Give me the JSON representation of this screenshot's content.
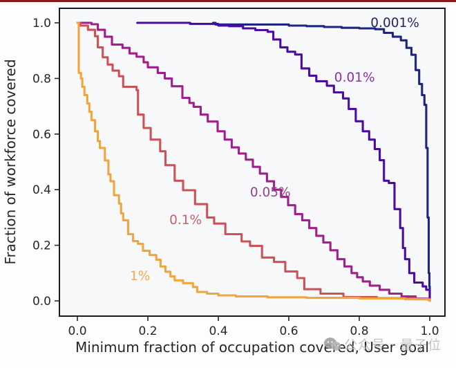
{
  "watermark": {
    "icon": "wechat-icon",
    "text": "公众号 · 量子位"
  },
  "chart_data": {
    "type": "line",
    "title": "",
    "xlabel": "Minimum fraction of occupation covered, User goal",
    "ylabel": "Fraction of workforce covered",
    "xlim": [
      0.0,
      1.0
    ],
    "ylim": [
      0.0,
      1.0
    ],
    "grid": false,
    "legend_position": "inline-labels",
    "xticks": [
      "0.0",
      "0.2",
      "0.4",
      "0.6",
      "0.8",
      "1.0"
    ],
    "yticks": [
      "0.0",
      "0.2",
      "0.4",
      "0.6",
      "0.8",
      "1.0"
    ],
    "background_color": "#f7f8fa",
    "axis_color": "#1b1b1b",
    "series": [
      {
        "name": "0.001%",
        "color": "#1e2583",
        "label_color": "#20265f",
        "label_pos": [
          0.832,
          0.985
        ],
        "points": [
          [
            0.385,
            1.0
          ],
          [
            0.392,
            0.994
          ],
          [
            0.57,
            0.994
          ],
          [
            0.6,
            0.99
          ],
          [
            0.65,
            0.988
          ],
          [
            0.7,
            0.985
          ],
          [
            0.75,
            0.982
          ],
          [
            0.8,
            0.98
          ],
          [
            0.845,
            0.977
          ],
          [
            0.87,
            0.964
          ],
          [
            0.895,
            0.95
          ],
          [
            0.918,
            0.937
          ],
          [
            0.934,
            0.91
          ],
          [
            0.948,
            0.885
          ],
          [
            0.96,
            0.83
          ],
          [
            0.97,
            0.78
          ],
          [
            0.978,
            0.74
          ],
          [
            0.985,
            0.705
          ],
          [
            0.99,
            0.55
          ],
          [
            0.994,
            0.3
          ],
          [
            0.997,
            0.1
          ],
          [
            0.999,
            0.052
          ],
          [
            1.0,
            0.0
          ]
        ]
      },
      {
        "name": "0.01%",
        "color": "#4a0da0",
        "label_color": "#8c2fa8",
        "label_pos": [
          0.729,
          0.788
        ],
        "points": [
          [
            0.17,
            1.0
          ],
          [
            0.3,
            1.0
          ],
          [
            0.32,
            0.996
          ],
          [
            0.382,
            0.996
          ],
          [
            0.4,
            0.99
          ],
          [
            0.43,
            0.988
          ],
          [
            0.47,
            0.98
          ],
          [
            0.505,
            0.974
          ],
          [
            0.54,
            0.968
          ],
          [
            0.556,
            0.94
          ],
          [
            0.576,
            0.912
          ],
          [
            0.596,
            0.896
          ],
          [
            0.618,
            0.886
          ],
          [
            0.636,
            0.836
          ],
          [
            0.658,
            0.81
          ],
          [
            0.678,
            0.79
          ],
          [
            0.708,
            0.774
          ],
          [
            0.728,
            0.75
          ],
          [
            0.754,
            0.728
          ],
          [
            0.77,
            0.69
          ],
          [
            0.79,
            0.646
          ],
          [
            0.81,
            0.61
          ],
          [
            0.828,
            0.58
          ],
          [
            0.844,
            0.546
          ],
          [
            0.858,
            0.506
          ],
          [
            0.87,
            0.432
          ],
          [
            0.884,
            0.424
          ],
          [
            0.9,
            0.33
          ],
          [
            0.916,
            0.262
          ],
          [
            0.924,
            0.19
          ],
          [
            0.93,
            0.15
          ],
          [
            0.942,
            0.1
          ],
          [
            0.956,
            0.066
          ],
          [
            0.98,
            0.052
          ],
          [
            0.99,
            0.04
          ],
          [
            1.0,
            0.0
          ]
        ]
      },
      {
        "name": "0.05%",
        "color": "#a11f8a",
        "label_color": "#98408d",
        "label_pos": [
          0.49,
          0.376
        ],
        "points": [
          [
            0.0,
            1.0
          ],
          [
            0.04,
            0.995
          ],
          [
            0.058,
            0.975
          ],
          [
            0.078,
            0.95
          ],
          [
            0.098,
            0.922
          ],
          [
            0.128,
            0.91
          ],
          [
            0.148,
            0.89
          ],
          [
            0.168,
            0.878
          ],
          [
            0.188,
            0.858
          ],
          [
            0.2,
            0.84
          ],
          [
            0.228,
            0.82
          ],
          [
            0.248,
            0.8
          ],
          [
            0.268,
            0.772
          ],
          [
            0.298,
            0.73
          ],
          [
            0.318,
            0.712
          ],
          [
            0.33,
            0.698
          ],
          [
            0.35,
            0.67
          ],
          [
            0.37,
            0.645
          ],
          [
            0.398,
            0.61
          ],
          [
            0.418,
            0.58
          ],
          [
            0.438,
            0.552
          ],
          [
            0.458,
            0.53
          ],
          [
            0.478,
            0.508
          ],
          [
            0.498,
            0.482
          ],
          [
            0.518,
            0.458
          ],
          [
            0.538,
            0.43
          ],
          [
            0.558,
            0.4
          ],
          [
            0.578,
            0.374
          ],
          [
            0.598,
            0.344
          ],
          [
            0.618,
            0.312
          ],
          [
            0.638,
            0.29
          ],
          [
            0.658,
            0.262
          ],
          [
            0.678,
            0.234
          ],
          [
            0.698,
            0.21
          ],
          [
            0.718,
            0.182
          ],
          [
            0.738,
            0.15
          ],
          [
            0.758,
            0.124
          ],
          [
            0.778,
            0.1
          ],
          [
            0.794,
            0.085
          ],
          [
            0.81,
            0.07
          ],
          [
            0.83,
            0.055
          ],
          [
            0.858,
            0.04
          ],
          [
            0.885,
            0.026
          ],
          [
            0.92,
            0.016
          ],
          [
            0.96,
            0.008
          ],
          [
            1.0,
            0.0
          ]
        ]
      },
      {
        "name": "0.1%",
        "color": "#cd5257",
        "label_color": "#c6606b",
        "label_pos": [
          0.261,
          0.276
        ],
        "points": [
          [
            0.0,
            1.0
          ],
          [
            0.008,
            0.99
          ],
          [
            0.03,
            0.975
          ],
          [
            0.05,
            0.952
          ],
          [
            0.058,
            0.912
          ],
          [
            0.072,
            0.876
          ],
          [
            0.086,
            0.85
          ],
          [
            0.1,
            0.828
          ],
          [
            0.118,
            0.808
          ],
          [
            0.13,
            0.77
          ],
          [
            0.168,
            0.758
          ],
          [
            0.172,
            0.67
          ],
          [
            0.188,
            0.622
          ],
          [
            0.208,
            0.58
          ],
          [
            0.235,
            0.538
          ],
          [
            0.25,
            0.488
          ],
          [
            0.276,
            0.432
          ],
          [
            0.3,
            0.398
          ],
          [
            0.334,
            0.348
          ],
          [
            0.368,
            0.3
          ],
          [
            0.388,
            0.278
          ],
          [
            0.42,
            0.24
          ],
          [
            0.466,
            0.214
          ],
          [
            0.49,
            0.198
          ],
          [
            0.524,
            0.156
          ],
          [
            0.558,
            0.14
          ],
          [
            0.59,
            0.106
          ],
          [
            0.624,
            0.082
          ],
          [
            0.644,
            0.042
          ],
          [
            0.69,
            0.026
          ],
          [
            0.755,
            0.014
          ],
          [
            0.85,
            0.01
          ],
          [
            0.96,
            0.006
          ],
          [
            1.0,
            0.0
          ]
        ]
      },
      {
        "name": "1%",
        "color": "#f1a53f",
        "label_color": "#f2ab55",
        "label_pos": [
          0.149,
          0.075
        ],
        "points": [
          [
            0.0,
            1.0
          ],
          [
            0.004,
            0.82
          ],
          [
            0.01,
            0.8
          ],
          [
            0.014,
            0.77
          ],
          [
            0.02,
            0.74
          ],
          [
            0.028,
            0.71
          ],
          [
            0.034,
            0.68
          ],
          [
            0.04,
            0.65
          ],
          [
            0.05,
            0.61
          ],
          [
            0.058,
            0.575
          ],
          [
            0.064,
            0.55
          ],
          [
            0.078,
            0.505
          ],
          [
            0.088,
            0.455
          ],
          [
            0.094,
            0.43
          ],
          [
            0.104,
            0.38
          ],
          [
            0.118,
            0.35
          ],
          [
            0.124,
            0.315
          ],
          [
            0.13,
            0.29
          ],
          [
            0.144,
            0.24
          ],
          [
            0.158,
            0.215
          ],
          [
            0.172,
            0.205
          ],
          [
            0.186,
            0.18
          ],
          [
            0.205,
            0.165
          ],
          [
            0.224,
            0.148
          ],
          [
            0.236,
            0.124
          ],
          [
            0.25,
            0.105
          ],
          [
            0.264,
            0.088
          ],
          [
            0.276,
            0.074
          ],
          [
            0.3,
            0.064
          ],
          [
            0.328,
            0.05
          ],
          [
            0.34,
            0.032
          ],
          [
            0.368,
            0.026
          ],
          [
            0.4,
            0.02
          ],
          [
            0.45,
            0.016
          ],
          [
            0.54,
            0.013
          ],
          [
            0.65,
            0.011
          ],
          [
            0.8,
            0.009
          ],
          [
            0.93,
            0.006
          ],
          [
            0.995,
            0.004
          ],
          [
            1.0,
            0.0
          ]
        ]
      }
    ]
  }
}
